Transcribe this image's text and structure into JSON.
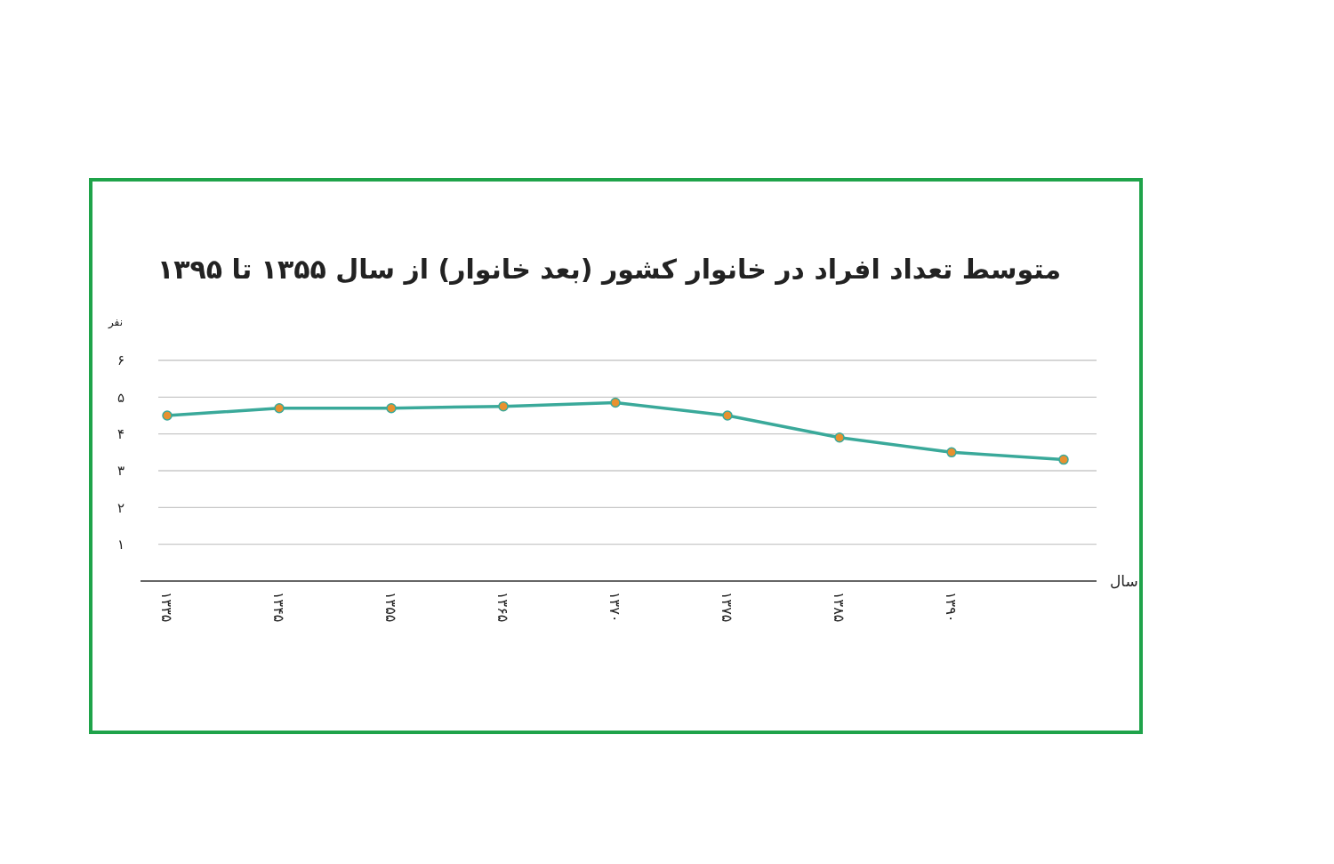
{
  "chart_data": {
    "type": "line",
    "title": "متوسط تعداد افراد در خانوار کشور (بعد خانوار) از سال ۱۳۵۵ تا ۱۳۹۵",
    "xlabel": "سال",
    "ylabel": "نفر",
    "categories": [
      "۱۳۳۵",
      "۱۳۴۵",
      "۱۳۵۵",
      "۱۳۶۵",
      "۱۳۷۰",
      "۱۳۷۵",
      "۱۳۸۵",
      "۱۳۹۰",
      null
    ],
    "series": [
      {
        "color": "#3aa99a",
        "colors": [
          "#e8912f",
          "#e8912f",
          "#e8912f",
          "#e8912f",
          "#e8912f",
          "#e8912f",
          "#e8912f",
          "#e8912f",
          "#e8912f"
        ],
        "values": [
          4.5,
          4.7,
          4.7,
          4.75,
          4.85,
          4.5,
          3.9,
          3.5,
          3.3
        ]
      }
    ],
    "ylim": [
      0,
      6
    ],
    "yticks": [
      {
        "value": 1,
        "label": "۱"
      },
      {
        "value": 2,
        "label": "۲"
      },
      {
        "value": 3,
        "label": "۳"
      },
      {
        "value": 4,
        "label": "۴"
      },
      {
        "value": 5,
        "label": "۵"
      },
      {
        "value": 6,
        "label": "۶"
      }
    ],
    "grid": "y",
    "marker": "circle",
    "line_style": "solid"
  }
}
